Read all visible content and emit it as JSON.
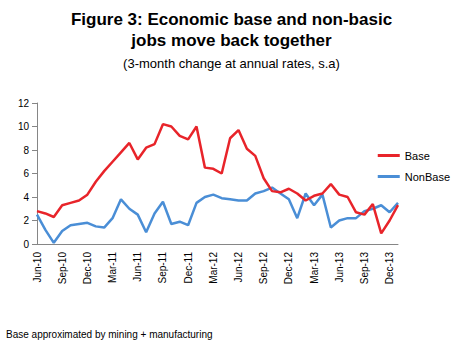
{
  "chart_data": {
    "type": "line",
    "title": "Figure 3: Economic base and non-basic\njobs move back together",
    "subtitle": "(3-month change at annual rates, s.a)",
    "annotation": "Base approximated by mining + manufacturing",
    "categories": [
      "Jun-10",
      null,
      null,
      "Sep-10",
      null,
      null,
      "Dec-10",
      null,
      null,
      "Mar-11",
      null,
      null,
      "Jun-11",
      null,
      null,
      "Sep-11",
      null,
      null,
      "Dec-11",
      null,
      null,
      "Mar-12",
      null,
      null,
      "Jun-12",
      null,
      null,
      "Sep-12",
      null,
      null,
      "Dec-12",
      null,
      null,
      "Mar-13",
      null,
      null,
      "Jun-13",
      null,
      null,
      "Sep-13",
      null,
      null,
      "Dec-13",
      null
    ],
    "series": [
      {
        "name": "Base",
        "color": "#e8242a",
        "values": [
          2.8,
          2.6,
          2.3,
          3.3,
          3.5,
          3.7,
          4.2,
          5.3,
          6.2,
          7.0,
          7.8,
          8.6,
          7.2,
          8.2,
          8.5,
          10.2,
          10.0,
          9.2,
          8.9,
          10.0,
          6.5,
          6.4,
          6.0,
          9.0,
          9.7,
          8.1,
          7.5,
          5.6,
          4.5,
          4.4,
          4.7,
          4.3,
          3.7,
          4.1,
          4.3,
          5.1,
          4.2,
          4.0,
          2.7,
          2.5,
          3.4,
          0.9,
          2.0,
          3.3
        ]
      },
      {
        "name": "NonBase",
        "color": "#4a8ed6",
        "values": [
          2.5,
          1.2,
          0.1,
          1.1,
          1.6,
          1.7,
          1.8,
          1.5,
          1.4,
          2.2,
          3.8,
          3.0,
          2.5,
          1.0,
          2.6,
          3.6,
          1.7,
          1.9,
          1.6,
          3.5,
          4.0,
          4.2,
          3.9,
          3.8,
          3.7,
          3.7,
          4.3,
          4.5,
          4.8,
          4.3,
          3.8,
          2.2,
          4.3,
          3.3,
          4.2,
          1.4,
          2.0,
          2.2,
          2.2,
          2.8,
          3.0,
          3.3,
          2.7,
          3.5
        ]
      }
    ],
    "ylim": [
      0,
      12
    ],
    "yticks": [
      0,
      2,
      4,
      6,
      8,
      10,
      12
    ],
    "grid": false,
    "legend": "right"
  }
}
